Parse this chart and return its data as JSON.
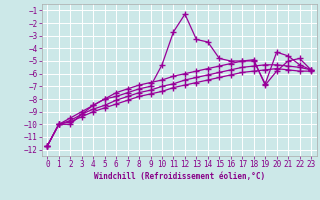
{
  "background_color": "#cce8e8",
  "grid_color": "#ffffff",
  "line_color": "#990099",
  "xlabel": "Windchill (Refroidissement éolien,°C)",
  "xlim": [
    -0.5,
    23.5
  ],
  "ylim": [
    -12.5,
    -0.5
  ],
  "x_ticks": [
    0,
    1,
    2,
    3,
    4,
    5,
    6,
    7,
    8,
    9,
    10,
    11,
    12,
    13,
    14,
    15,
    16,
    17,
    18,
    19,
    20,
    21,
    22,
    23
  ],
  "y_ticks": [
    -12,
    -11,
    -10,
    -9,
    -8,
    -7,
    -6,
    -5,
    -4,
    -3,
    -2,
    -1
  ],
  "series": [
    {
      "x": [
        0,
        1,
        2,
        3,
        4,
        5,
        6,
        7,
        8,
        9,
        10,
        11,
        12,
        13,
        14,
        15,
        16,
        17,
        18,
        19,
        20,
        21,
        22,
        23
      ],
      "y": [
        -11.7,
        -10.0,
        -10.0,
        -9.2,
        -8.5,
        -8.0,
        -7.8,
        -7.5,
        -7.2,
        -7.0,
        -5.3,
        -2.7,
        -1.3,
        -3.3,
        -3.5,
        -4.8,
        -5.0,
        -5.0,
        -5.0,
        -6.8,
        -4.3,
        -4.6,
        -5.3,
        -5.7
      ]
    },
    {
      "x": [
        0,
        1,
        2,
        3,
        4,
        5,
        6,
        7,
        8,
        9,
        10,
        11,
        12,
        13,
        14,
        15,
        16,
        17,
        18,
        19,
        20,
        21,
        22,
        23
      ],
      "y": [
        -11.7,
        -10.0,
        -9.5,
        -9.0,
        -8.5,
        -8.0,
        -7.5,
        -7.2,
        -6.9,
        -6.7,
        -6.5,
        -6.2,
        -6.0,
        -5.8,
        -5.6,
        -5.4,
        -5.2,
        -5.0,
        -4.9,
        -6.9,
        -5.8,
        -5.0,
        -4.8,
        -5.7
      ]
    },
    {
      "x": [
        0,
        1,
        2,
        3,
        4,
        5,
        6,
        7,
        8,
        9,
        10,
        11,
        12,
        13,
        14,
        15,
        16,
        17,
        18,
        19,
        20,
        21,
        22,
        23
      ],
      "y": [
        -11.7,
        -10.0,
        -9.8,
        -9.4,
        -9.0,
        -8.7,
        -8.4,
        -8.1,
        -7.8,
        -7.6,
        -7.4,
        -7.1,
        -6.9,
        -6.7,
        -6.5,
        -6.3,
        -6.1,
        -5.9,
        -5.8,
        -5.7,
        -5.6,
        -5.7,
        -5.8,
        -5.8
      ]
    },
    {
      "x": [
        0,
        1,
        2,
        3,
        4,
        5,
        6,
        7,
        8,
        9,
        10,
        11,
        12,
        13,
        14,
        15,
        16,
        17,
        18,
        19,
        20,
        21,
        22,
        23
      ],
      "y": [
        -11.7,
        -10.0,
        -9.7,
        -9.2,
        -8.8,
        -8.5,
        -8.1,
        -7.8,
        -7.5,
        -7.3,
        -7.0,
        -6.8,
        -6.5,
        -6.3,
        -6.1,
        -5.9,
        -5.7,
        -5.5,
        -5.4,
        -5.3,
        -5.3,
        -5.4,
        -5.5,
        -5.7
      ]
    }
  ]
}
